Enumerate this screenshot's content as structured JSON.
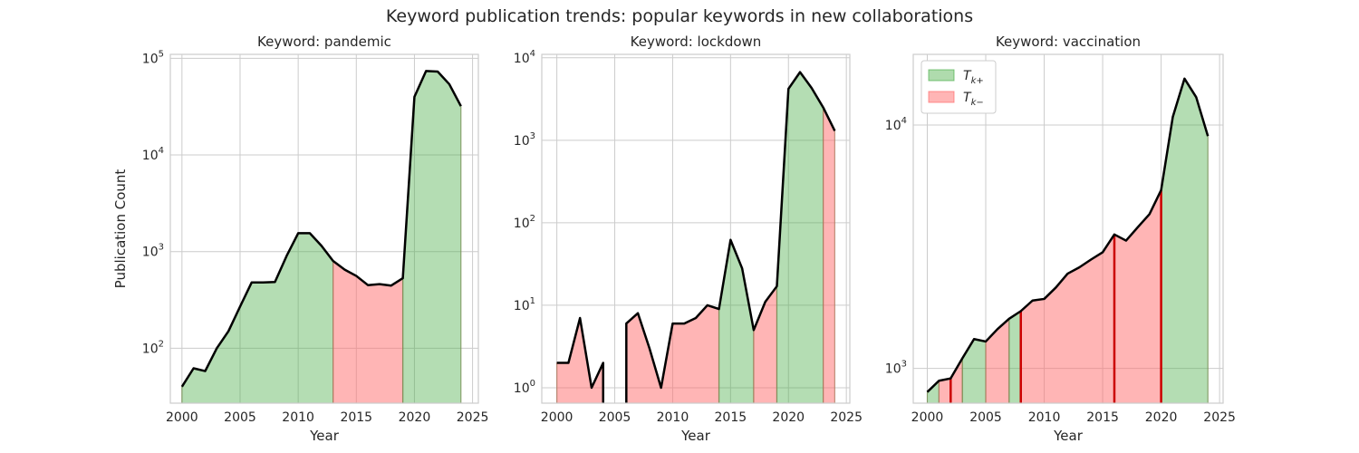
{
  "figure_title": "Keyword publication trends: popular keywords in new collaborations",
  "colors": {
    "tk_plus": "#4daf4a",
    "tk_minus": "#ff6b6b",
    "line": "#000000",
    "split": "#cc0000"
  },
  "legend": [
    {
      "label": "T",
      "sub": "k+",
      "color_key": "tk_plus"
    },
    {
      "label": "T",
      "sub": "k−",
      "color_key": "tk_minus"
    }
  ],
  "chart_data": [
    {
      "type": "area",
      "title": "Keyword: pandemic",
      "xlabel": "Year",
      "ylabel": "Publication Count",
      "yscale": "log",
      "xlim": [
        1999,
        2025.5
      ],
      "ylim": [
        27,
        110000
      ],
      "xticks": [
        2000,
        2005,
        2010,
        2015,
        2020,
        2025
      ],
      "yticks": [
        {
          "value": 100,
          "mant": "10",
          "exp": "2"
        },
        {
          "value": 1000,
          "mant": "10",
          "exp": "3"
        },
        {
          "value": 10000,
          "mant": "10",
          "exp": "4"
        },
        {
          "value": 100000,
          "mant": "10",
          "exp": "5"
        }
      ],
      "x": [
        2000,
        2001,
        2002,
        2003,
        2004,
        2005,
        2006,
        2007,
        2008,
        2009,
        2010,
        2011,
        2012,
        2013,
        2014,
        2015,
        2016,
        2017,
        2018,
        2019,
        2020,
        2021,
        2022,
        2023,
        2024
      ],
      "y": [
        40,
        62,
        58,
        100,
        150,
        270,
        480,
        480,
        485,
        900,
        1550,
        1550,
        1150,
        800,
        650,
        560,
        450,
        460,
        445,
        530,
        40000,
        74000,
        73000,
        54000,
        32000
      ],
      "segments": [
        {
          "class": "tk_plus",
          "from": 2000,
          "to": 2013
        },
        {
          "class": "tk_minus",
          "from": 2013,
          "to": 2019
        },
        {
          "class": "tk_plus",
          "from": 2019,
          "to": 2024
        }
      ],
      "split_marks": [],
      "legend": false
    },
    {
      "type": "area",
      "title": "Keyword: lockdown",
      "xlabel": "Year",
      "ylabel": "",
      "yscale": "log",
      "xlim": [
        1998.7,
        2025.3
      ],
      "ylim": [
        0.65,
        11000
      ],
      "xticks": [
        2000,
        2005,
        2010,
        2015,
        2020,
        2025
      ],
      "yticks": [
        {
          "value": 1,
          "mant": "10",
          "exp": "0"
        },
        {
          "value": 10,
          "mant": "10",
          "exp": "1"
        },
        {
          "value": 100,
          "mant": "10",
          "exp": "2"
        },
        {
          "value": 1000,
          "mant": "10",
          "exp": "3"
        },
        {
          "value": 10000,
          "mant": "10",
          "exp": "4"
        }
      ],
      "x": [
        2000,
        2001,
        2002,
        2003,
        2004,
        2005,
        2006,
        2007,
        2008,
        2009,
        2010,
        2011,
        2012,
        2013,
        2014,
        2015,
        2016,
        2017,
        2018,
        2019,
        2020,
        2021,
        2022,
        2023,
        2024
      ],
      "y": [
        2,
        2,
        7,
        1,
        2,
        null,
        6,
        8,
        3,
        1,
        6,
        6,
        7,
        10,
        9,
        62,
        28,
        5,
        11,
        17,
        4200,
        6700,
        4300,
        2500,
        1300
      ],
      "segments": [
        {
          "class": "tk_minus",
          "from": 2000,
          "to": 2004
        },
        {
          "class": "tk_minus",
          "from": 2006,
          "to": 2014
        },
        {
          "class": "tk_plus",
          "from": 2014,
          "to": 2017
        },
        {
          "class": "tk_minus",
          "from": 2017,
          "to": 2019
        },
        {
          "class": "tk_plus",
          "from": 2019,
          "to": 2023
        },
        {
          "class": "tk_minus",
          "from": 2023,
          "to": 2024
        }
      ],
      "split_marks": [],
      "legend": false
    },
    {
      "type": "area",
      "title": "Keyword: vaccination",
      "xlabel": "Year",
      "ylabel": "",
      "yscale": "log",
      "xlim": [
        1998.8,
        2025.3
      ],
      "ylim": [
        720,
        19500
      ],
      "xticks": [
        2000,
        2005,
        2010,
        2015,
        2020,
        2025
      ],
      "yticks": [
        {
          "value": 1000,
          "mant": "10",
          "exp": "3"
        },
        {
          "value": 10000,
          "mant": "10",
          "exp": "4"
        }
      ],
      "x": [
        2000,
        2001,
        2002,
        2003,
        2004,
        2005,
        2006,
        2007,
        2008,
        2009,
        2010,
        2011,
        2012,
        2013,
        2014,
        2015,
        2016,
        2017,
        2018,
        2019,
        2020,
        2021,
        2022,
        2023,
        2024
      ],
      "y": [
        800,
        890,
        910,
        1100,
        1320,
        1290,
        1450,
        1600,
        1720,
        1900,
        1930,
        2150,
        2450,
        2600,
        2800,
        3000,
        3550,
        3350,
        3800,
        4300,
        5400,
        10800,
        15500,
        13000,
        9000
      ],
      "segments": [
        {
          "class": "tk_plus",
          "from": 2000,
          "to": 2001
        },
        {
          "class": "tk_minus",
          "from": 2001,
          "to": 2003
        },
        {
          "class": "tk_plus",
          "from": 2003,
          "to": 2005
        },
        {
          "class": "tk_minus",
          "from": 2005,
          "to": 2007
        },
        {
          "class": "tk_plus",
          "from": 2007,
          "to": 2008
        },
        {
          "class": "tk_minus",
          "from": 2008,
          "to": 2020
        },
        {
          "class": "tk_plus",
          "from": 2020,
          "to": 2024
        }
      ],
      "split_marks": [
        2002,
        2008,
        2016,
        2020
      ],
      "legend": true
    }
  ]
}
